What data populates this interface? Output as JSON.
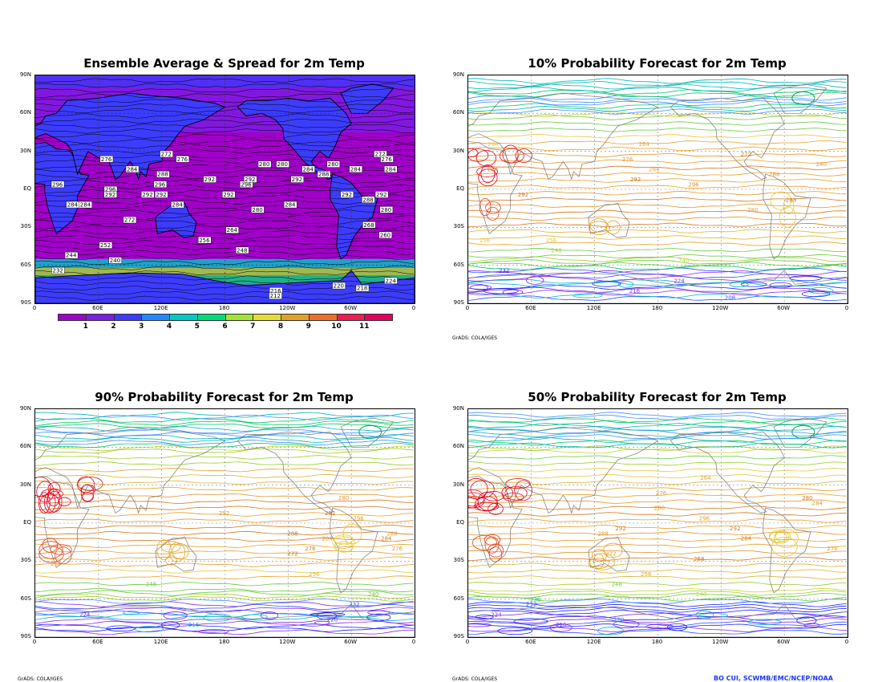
{
  "panels": [
    {
      "id": "p1",
      "title": "Ensemble Average & Spread for 2m Temp",
      "lat_labels": [
        "90N",
        "60N",
        "30N",
        "EQ",
        "30S",
        "60S",
        "90S"
      ],
      "lon_labels": [
        "0",
        "60E",
        "120E",
        "180",
        "120W",
        "60W",
        "0"
      ]
    },
    {
      "id": "p2",
      "title": "10% Probability Forecast for 2m Temp",
      "lat_labels": [
        "90N",
        "60N",
        "30N",
        "EQ",
        "30S",
        "60S",
        "90S"
      ],
      "lon_labels": [
        "0",
        "60E",
        "120E",
        "180",
        "120W",
        "60W",
        "0"
      ],
      "footer": "GrADS: COLA/IGES"
    },
    {
      "id": "p3",
      "title": "90% Probability Forecast for 2m Temp",
      "lat_labels": [
        "90N",
        "60N",
        "30N",
        "EQ",
        "30S",
        "60S",
        "90S"
      ],
      "lon_labels": [
        "0",
        "60E",
        "120E",
        "180",
        "120W",
        "60W",
        "0"
      ],
      "footer": "GrADS: COLA/IGES"
    },
    {
      "id": "p4",
      "title": "50% Probability Forecast for 2m Temp",
      "lat_labels": [
        "90N",
        "60N",
        "30N",
        "EQ",
        "30S",
        "60S",
        "90S"
      ],
      "lon_labels": [
        "0",
        "60E",
        "120E",
        "180",
        "120W",
        "60W",
        "0"
      ],
      "footer": "GrADS: COLA/IGES"
    }
  ],
  "colorbar": {
    "labels": [
      "1",
      "2",
      "3",
      "4",
      "5",
      "6",
      "7",
      "8",
      "9",
      "10",
      "11"
    ],
    "colors": [
      "#a000c8",
      "#7a1ee6",
      "#3c3cff",
      "#1e8cff",
      "#00c8c8",
      "#00dc78",
      "#a0e632",
      "#e6dc32",
      "#e6a028",
      "#f06e28",
      "#f01e50",
      "#e6005a"
    ]
  },
  "credit": "BO CUI, SCWMB/EMC/NCEP/NOAA",
  "chart_data": [
    {
      "type": "heatmap",
      "title": "Ensemble Average & Spread for 2m Temp",
      "xlabel": "",
      "ylabel": "",
      "x_ticks": [
        "0",
        "60E",
        "120E",
        "180",
        "120W",
        "60W",
        "0"
      ],
      "y_ticks": [
        "90N",
        "60N",
        "30N",
        "EQ",
        "30S",
        "60S",
        "90S"
      ],
      "colorbar_levels": [
        1,
        2,
        3,
        4,
        5,
        6,
        7,
        8,
        9,
        10,
        11
      ],
      "contour_labels": [
        272,
        272,
        280,
        284,
        276,
        280,
        284,
        292,
        288,
        284,
        284,
        292,
        280,
        292,
        284,
        292,
        292,
        296,
        296,
        292,
        292,
        296,
        296,
        292,
        292,
        288,
        284,
        284,
        280,
        276,
        272,
        260,
        252,
        248,
        240,
        232,
        224,
        216,
        218,
        220,
        212,
        244,
        256,
        264,
        268,
        276,
        280,
        284,
        288
      ],
      "grid": true
    },
    {
      "type": "heatmap",
      "title": "10% Probability Forecast for 2m Temp",
      "x_ticks": [
        "0",
        "60E",
        "120E",
        "180",
        "120W",
        "60W",
        "0"
      ],
      "y_ticks": [
        "90N",
        "60N",
        "30N",
        "EQ",
        "30S",
        "60S",
        "90S"
      ],
      "contour_labels": [
        256,
        264,
        272,
        280,
        284,
        288,
        292,
        296,
        292,
        288,
        284,
        280,
        276,
        264,
        256,
        248,
        240,
        232,
        224,
        216,
        208
      ],
      "grid": true
    },
    {
      "type": "heatmap",
      "title": "90% Probability Forecast for 2m Temp",
      "x_ticks": [
        "0",
        "60E",
        "120E",
        "180",
        "120W",
        "60W",
        "0"
      ],
      "y_ticks": [
        "90N",
        "60N",
        "30N",
        "EQ",
        "30S",
        "60S",
        "90S"
      ],
      "contour_labels": [
        272,
        276,
        280,
        284,
        288,
        292,
        296,
        292,
        288,
        284,
        276,
        272,
        264,
        256,
        248,
        240,
        232,
        224,
        220,
        216
      ],
      "grid": true
    },
    {
      "type": "heatmap",
      "title": "50% Probability Forecast for 2m Temp",
      "x_ticks": [
        "0",
        "60E",
        "120E",
        "180",
        "120W",
        "60W",
        "0"
      ],
      "y_ticks": [
        "90N",
        "60N",
        "30N",
        "EQ",
        "30S",
        "60S",
        "90S"
      ],
      "contour_labels": [
        272,
        276,
        280,
        284,
        288,
        292,
        296,
        292,
        288,
        284,
        276,
        268,
        264,
        256,
        248,
        240,
        236,
        232,
        224,
        220,
        216
      ],
      "grid": true
    }
  ]
}
